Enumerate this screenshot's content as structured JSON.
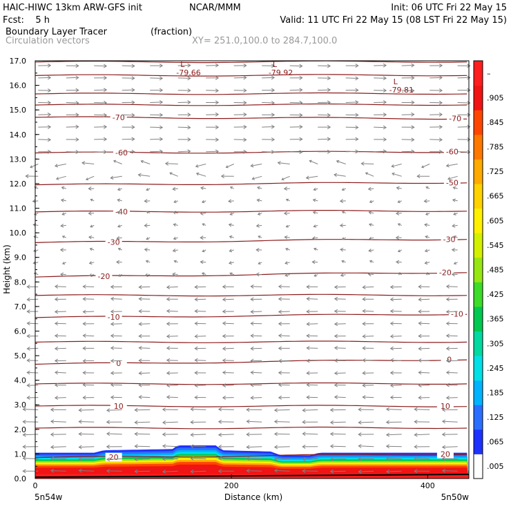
{
  "header": {
    "line1_left": "HAIC-HIWC 13km ARW-GFS init",
    "line1_mid": "NCAR/MMM",
    "line1_right": "Init: 06 UTC Fri 22 May 15",
    "fcst": "Fcst:    5 h",
    "valid": "Valid: 11 UTC Fri 22 May 15 (08 LST Fri 22 May 15)",
    "field1": "Boundary Layer Tracer",
    "field1_units": "(fraction)",
    "field2": "Circulation vectors",
    "xy": "XY= 251.0,100.0 to 284.7,100.0"
  },
  "chart_data": {
    "type": "heatmap",
    "xlabel": "Distance (km)",
    "ylabel": "Height (km)",
    "xlim": [
      0,
      442
    ],
    "ylim": [
      0,
      17
    ],
    "x_ticks": [
      0,
      200,
      400
    ],
    "y_ticks": [
      "0.0",
      "1.0",
      "2.0",
      "3.0",
      "4.0",
      "5.0",
      "6.0",
      "7.0",
      "8.0",
      "9.0",
      "10.0",
      "11.0",
      "12.0",
      "13.0",
      "14.0",
      "15.0",
      "16.0",
      "17.0"
    ],
    "x_end_labels": {
      "left": "5n54w",
      "right": "5n50w"
    },
    "colorbar": {
      "labels": [
        ".005",
        ".065",
        ".125",
        ".185",
        ".245",
        ".305",
        ".365",
        ".425",
        ".485",
        ".545",
        ".605",
        ".665",
        ".725",
        ".785",
        ".845",
        ".905",
        "–"
      ],
      "colors": [
        "#ffffff",
        "#1e32ff",
        "#2a6fff",
        "#00b3ff",
        "#00e0e6",
        "#00d9a0",
        "#00c850",
        "#3cdc28",
        "#96e614",
        "#d2f000",
        "#fff000",
        "#ffd200",
        "#ffaa00",
        "#ff7800",
        "#ff4600",
        "#f01414",
        "#ff1e1e"
      ]
    },
    "tracer_top_km": [
      {
        "x": 0,
        "y": 1.05
      },
      {
        "x": 60,
        "y": 1.05
      },
      {
        "x": 70,
        "y": 1.15
      },
      {
        "x": 140,
        "y": 1.2
      },
      {
        "x": 145,
        "y": 1.35
      },
      {
        "x": 185,
        "y": 1.35
      },
      {
        "x": 190,
        "y": 1.15
      },
      {
        "x": 240,
        "y": 1.1
      },
      {
        "x": 250,
        "y": 0.95
      },
      {
        "x": 280,
        "y": 0.95
      },
      {
        "x": 290,
        "y": 1.05
      },
      {
        "x": 442,
        "y": 1.05
      }
    ],
    "temperature_contours": [
      {
        "label": "0",
        "y_left": 4.65,
        "y_right": 4.85,
        "label_x": [
          85,
          422
        ]
      },
      {
        "label": "10",
        "y_left": 2.95,
        "y_right": 2.95,
        "label_x": [
          85,
          418
        ]
      },
      {
        "label": "20",
        "y_left": 0.85,
        "y_right": 1.0,
        "label_x": [
          80,
          418
        ]
      },
      {
        "label": "-10",
        "y_left": 6.55,
        "y_right": 6.7,
        "label_x": [
          80,
          430
        ]
      },
      {
        "label": "-20",
        "y_left": 8.2,
        "y_right": 8.4,
        "label_x": [
          70,
          418
        ]
      },
      {
        "label": "-30",
        "y_left": 9.6,
        "y_right": 9.75,
        "label_x": [
          80,
          422
        ]
      },
      {
        "label": "-40",
        "y_left": 10.85,
        "y_right": 10.9,
        "label_x": [
          88,
          0
        ]
      },
      {
        "label": "-50",
        "y_left": 11.95,
        "y_right": 12.05,
        "label_x": [
          0,
          425
        ]
      },
      {
        "label": "-60",
        "y_left": 13.25,
        "y_right": 13.3,
        "label_x": [
          88,
          425
        ]
      },
      {
        "label": "-70",
        "y_left": 14.7,
        "y_right": 14.65,
        "label_x": [
          85,
          428
        ]
      }
    ],
    "extra_contours_km": [
      2.05,
      3.85,
      5.55,
      7.45,
      15.2,
      15.65,
      16.4,
      16.95
    ],
    "minima": [
      {
        "label": "L",
        "value": "-79.66",
        "x": 148,
        "y": 16.75
      },
      {
        "label": "L",
        "value": "-79.92",
        "x": 242,
        "y": 16.75
      },
      {
        "label": "L",
        "value": "-79.81",
        "x": 365,
        "y": 16.05
      }
    ]
  }
}
